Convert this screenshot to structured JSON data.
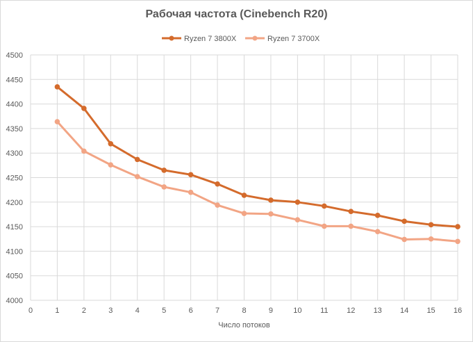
{
  "chart_data": {
    "type": "line",
    "title": "Рабочая частота (Cinebench R20)",
    "xlabel": "Число потоков",
    "ylabel": "",
    "xlim": [
      0,
      16
    ],
    "ylim": [
      4000,
      4500
    ],
    "x_ticks": [
      0,
      1,
      2,
      3,
      4,
      5,
      6,
      7,
      8,
      9,
      10,
      11,
      12,
      13,
      14,
      15,
      16
    ],
    "y_ticks": [
      4000,
      4050,
      4100,
      4150,
      4200,
      4250,
      4300,
      4350,
      4400,
      4450,
      4500
    ],
    "grid": true,
    "legend_position": "top",
    "x": [
      1,
      2,
      3,
      4,
      5,
      6,
      7,
      8,
      9,
      10,
      11,
      12,
      13,
      14,
      15,
      16
    ],
    "series": [
      {
        "name": "Ryzen 7 3800X",
        "color": "#D46B2C",
        "values": [
          4435,
          4391,
          4319,
          4287,
          4265,
          4256,
          4237,
          4214,
          4204,
          4200,
          4192,
          4181,
          4173,
          4161,
          4154,
          4150
        ]
      },
      {
        "name": "Ryzen 7 3700X",
        "color": "#F2A585",
        "values": [
          4364,
          4304,
          4276,
          4252,
          4231,
          4220,
          4194,
          4177,
          4176,
          4164,
          4151,
          4151,
          4140,
          4124,
          4125,
          4120
        ]
      }
    ]
  }
}
